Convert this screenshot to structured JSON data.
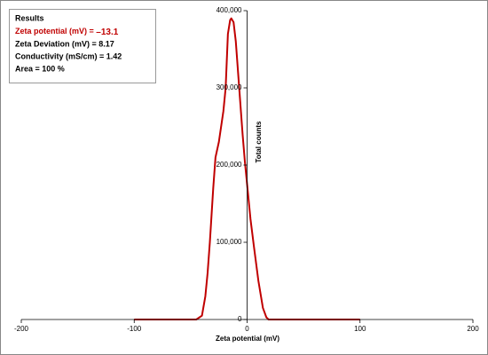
{
  "chart_data": {
    "type": "line",
    "xlabel": "Zeta potential (mV)",
    "ylabel": "Total counts",
    "annotations": {
      "title": "Results",
      "highlight_label": "Zeta potential (mV) = ",
      "highlight_value": "–13.1",
      "lines": [
        "Zeta Deviation (mV) = 8.17",
        "Conductivity (mS/cm) = 1.42",
        "Area = 100 %"
      ]
    },
    "x": [
      -100,
      -45,
      -40,
      -37,
      -35,
      -33,
      -30,
      -28,
      -25,
      -21,
      -19,
      -17,
      -15,
      -14,
      -12,
      -10,
      -7,
      -4,
      -2,
      0,
      3,
      6,
      10,
      14,
      17,
      19,
      100
    ],
    "series": [
      {
        "name": "Total counts",
        "color": "#c00000",
        "values": [
          0,
          0,
          5000,
          30000,
          60000,
          100000,
          170000,
          210000,
          230000,
          270000,
          300000,
          370000,
          388000,
          390000,
          385000,
          360000,
          300000,
          240000,
          205000,
          175000,
          130000,
          95000,
          50000,
          15000,
          3000,
          0,
          0
        ]
      }
    ],
    "xlim": [
      -200,
      200
    ],
    "xticks": [
      -200,
      -100,
      0,
      100,
      200
    ],
    "ylim": [
      0,
      400000
    ],
    "yticks": [
      {
        "value": 0,
        "label": "0"
      },
      {
        "value": 100000,
        "label": "100,000"
      },
      {
        "value": 200000,
        "label": "200,000"
      },
      {
        "value": 300000,
        "label": "300,000"
      },
      {
        "value": 400000,
        "label": "400,000"
      }
    ]
  }
}
